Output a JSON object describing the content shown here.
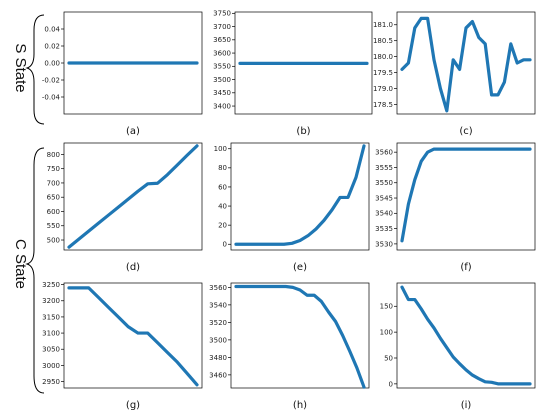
{
  "groups": [
    {
      "label": "S State",
      "panels": [
        "a",
        "b",
        "c"
      ]
    },
    {
      "label": "C State",
      "panels": [
        "d",
        "e",
        "f",
        "g",
        "h",
        "i"
      ]
    }
  ],
  "series_color": "#1f77b4",
  "chart_data": [
    {
      "id": "a",
      "caption": "(a)",
      "type": "line",
      "ylim": [
        -0.06,
        0.06
      ],
      "yticks": [
        "0.04",
        "0.02",
        "0.00",
        "-0.02",
        "-0.04"
      ],
      "ytick_values": [
        0.04,
        0.02,
        0.0,
        -0.02,
        -0.04
      ],
      "x": [
        0,
        1
      ],
      "y": [
        0.0,
        0.0
      ]
    },
    {
      "id": "b",
      "caption": "(b)",
      "type": "line",
      "ylim": [
        3370,
        3755
      ],
      "yticks": [
        "3750",
        "3700",
        "3650",
        "3600",
        "3550",
        "3500",
        "3450",
        "3400"
      ],
      "ytick_values": [
        3750,
        3700,
        3650,
        3600,
        3550,
        3500,
        3450,
        3400
      ],
      "x": [
        0,
        1
      ],
      "y": [
        3561,
        3561
      ]
    },
    {
      "id": "c",
      "caption": "(c)",
      "type": "line",
      "ylim": [
        178.2,
        181.4
      ],
      "yticks": [
        "181.0",
        "180.5",
        "180.0",
        "179.5",
        "179.0",
        "178.5"
      ],
      "ytick_values": [
        181.0,
        180.5,
        180.0,
        179.5,
        179.0,
        178.5
      ],
      "x": [
        0,
        1,
        2,
        3,
        4,
        5,
        6,
        7,
        8,
        9,
        10,
        11,
        12,
        13,
        14,
        15,
        16,
        17,
        18,
        19,
        20
      ],
      "y": [
        179.6,
        179.8,
        180.9,
        181.2,
        181.2,
        179.9,
        179.0,
        178.3,
        179.9,
        179.6,
        180.9,
        181.1,
        180.6,
        180.4,
        178.8,
        178.8,
        179.2,
        180.4,
        179.8,
        179.9,
        179.9
      ]
    },
    {
      "id": "d",
      "caption": "(d)",
      "type": "line",
      "ylim": [
        465,
        840
      ],
      "yticks": [
        "800",
        "750",
        "700",
        "650",
        "600",
        "550",
        "500"
      ],
      "ytick_values": [
        800,
        750,
        700,
        650,
        600,
        550,
        500
      ],
      "x": [
        0,
        1,
        2,
        3,
        4,
        5,
        6,
        7,
        8,
        9,
        10,
        11,
        12,
        13
      ],
      "y": [
        475,
        503,
        531,
        559,
        587,
        615,
        643,
        671,
        697,
        699,
        729,
        763,
        797,
        830
      ]
    },
    {
      "id": "e",
      "caption": "(e)",
      "type": "line",
      "ylim": [
        -6,
        106
      ],
      "yticks": [
        "100",
        "80",
        "60",
        "40",
        "20",
        "0"
      ],
      "ytick_values": [
        100,
        80,
        60,
        40,
        20,
        0
      ],
      "x": [
        0,
        1,
        2,
        3,
        4,
        5,
        6,
        7,
        8,
        9,
        10,
        11,
        12,
        13,
        14,
        15,
        16
      ],
      "y": [
        0,
        0,
        0,
        0,
        0,
        0,
        0,
        1,
        4,
        9,
        16,
        25,
        36,
        49,
        49,
        70,
        103
      ]
    },
    {
      "id": "f",
      "caption": "(f)",
      "type": "line",
      "ylim": [
        3528,
        3563
      ],
      "yticks": [
        "3560",
        "3555",
        "3550",
        "3545",
        "3540",
        "3535",
        "3530"
      ],
      "ytick_values": [
        3560,
        3555,
        3550,
        3545,
        3540,
        3535,
        3530
      ],
      "x": [
        0,
        1,
        2,
        3,
        4,
        5,
        6,
        7,
        8,
        9,
        10,
        11,
        12,
        13,
        14,
        15,
        16,
        17,
        18,
        19,
        20
      ],
      "y": [
        3531,
        3543,
        3551,
        3557,
        3560,
        3561,
        3561,
        3561,
        3561,
        3561,
        3561,
        3561,
        3561,
        3561,
        3561,
        3561,
        3561,
        3561,
        3561,
        3561,
        3561
      ]
    },
    {
      "id": "g",
      "caption": "(g)",
      "type": "line",
      "ylim": [
        2930,
        3255
      ],
      "yticks": [
        "3250",
        "3200",
        "3150",
        "3100",
        "3050",
        "3000",
        "2950"
      ],
      "ytick_values": [
        3250,
        3200,
        3150,
        3100,
        3050,
        3000,
        2950
      ],
      "x": [
        0,
        1,
        2,
        3,
        4,
        5,
        6,
        7,
        8,
        9,
        10,
        11,
        12,
        13
      ],
      "y": [
        3240,
        3240,
        3240,
        3210,
        3180,
        3150,
        3120,
        3100,
        3100,
        3070,
        3040,
        3010,
        2975,
        2940
      ]
    },
    {
      "id": "h",
      "caption": "(h)",
      "type": "line",
      "ylim": [
        3445,
        3565
      ],
      "yticks": [
        "3560",
        "3540",
        "3520",
        "3500",
        "3480",
        "3460"
      ],
      "ytick_values": [
        3560,
        3540,
        3520,
        3500,
        3480,
        3460
      ],
      "x": [
        0,
        1,
        2,
        3,
        4,
        5,
        6,
        7,
        8,
        9,
        10,
        11,
        12,
        13,
        14,
        15,
        16,
        17,
        18
      ],
      "y": [
        3561,
        3561,
        3561,
        3561,
        3561,
        3561,
        3561,
        3561,
        3560,
        3557,
        3551,
        3551,
        3544,
        3532,
        3521,
        3505,
        3487,
        3468,
        3446
      ]
    },
    {
      "id": "i",
      "caption": "(i)",
      "type": "line",
      "ylim": [
        -8,
        195
      ],
      "yticks": [
        "150",
        "100",
        "50",
        "0"
      ],
      "ytick_values": [
        150,
        100,
        50,
        0
      ],
      "x": [
        0,
        1,
        2,
        3,
        4,
        5,
        6,
        7,
        8,
        9,
        10,
        11,
        12,
        13,
        14,
        15,
        16,
        17,
        18,
        19,
        20
      ],
      "y": [
        187,
        163,
        163,
        145,
        125,
        108,
        88,
        70,
        52,
        39,
        27,
        17,
        10,
        4,
        3,
        0,
        0,
        0,
        0,
        0,
        0
      ]
    }
  ]
}
